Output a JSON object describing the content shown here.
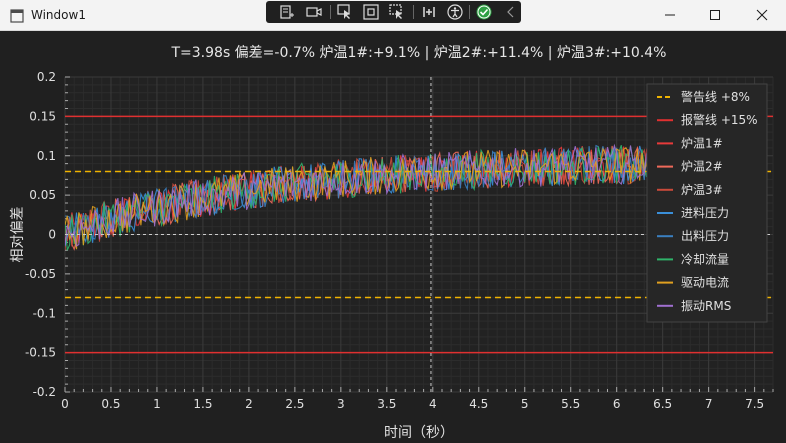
{
  "window": {
    "title": "Window1"
  },
  "toolbar": {
    "buttons": [
      {
        "name": "live-visual-tree-icon"
      },
      {
        "name": "camera-icon"
      },
      {
        "name": "select-element-icon"
      },
      {
        "name": "display-layout-adorners-icon"
      },
      {
        "name": "track-focused-element-icon"
      },
      {
        "name": "hot-reload-icon"
      },
      {
        "name": "accessibility-icon"
      },
      {
        "name": "binding-check-icon"
      },
      {
        "name": "collapse-chevron-icon"
      }
    ]
  },
  "colors": {
    "background": "#202020",
    "plot_background": "#222222",
    "grid_major": "#3a3a3a",
    "grid_minor": "#2c2c2c",
    "axis_text": "#e0e0e0",
    "warning_line": "#f0b400",
    "alarm_line": "#e03030",
    "cursor_line": "#cccccc"
  },
  "chart_data": {
    "type": "line",
    "title": "T=3.98s  偏差=-0.7%  炉温1#:+9.1% | 炉温2#:+11.4% | 炉温3#:+10.4%",
    "xlabel": "时间（秒）",
    "ylabel": "相对偏差",
    "xlim": [
      0,
      7.7
    ],
    "ylim": [
      -0.2,
      0.2
    ],
    "x_ticks": [
      "0",
      "0.5",
      "1",
      "1.5",
      "2",
      "2.5",
      "3",
      "3.5",
      "4",
      "4.5",
      "5",
      "5.5",
      "6",
      "6.5",
      "7",
      "7.5"
    ],
    "y_ticks": [
      "0.2",
      "0.15",
      "0.1",
      "0.05",
      "0",
      "-0.05",
      "-0.1",
      "-0.15",
      "-0.2"
    ],
    "grid": true,
    "legend_position": "top-right",
    "data_x_end": 6.7,
    "cursor_x": 3.98,
    "cursor_y": 0,
    "reference_lines": [
      {
        "name": "警告线 +8%",
        "values": [
          0.08,
          -0.08
        ],
        "color": "#f0b400",
        "style": "dashed"
      },
      {
        "name": "报警线 +15%",
        "values": [
          0.15,
          -0.15
        ],
        "color": "#e03030",
        "style": "solid"
      }
    ],
    "trend": {
      "start": 0.0,
      "plateau": 0.095,
      "time_constant": 2.2,
      "noise_amplitude": 0.025
    },
    "series": [
      {
        "name": "炉温1#",
        "color": "#e83a3a"
      },
      {
        "name": "炉温2#",
        "color": "#ef6a5a"
      },
      {
        "name": "炉温3#",
        "color": "#c94a3a"
      },
      {
        "name": "进料压力",
        "color": "#3a8fd9"
      },
      {
        "name": "出料压力",
        "color": "#3a7fc0"
      },
      {
        "name": "冷却流量",
        "color": "#2fb36a"
      },
      {
        "name": "驱动电流",
        "color": "#e0a020"
      },
      {
        "name": "振动RMS",
        "color": "#a070d0"
      }
    ]
  }
}
